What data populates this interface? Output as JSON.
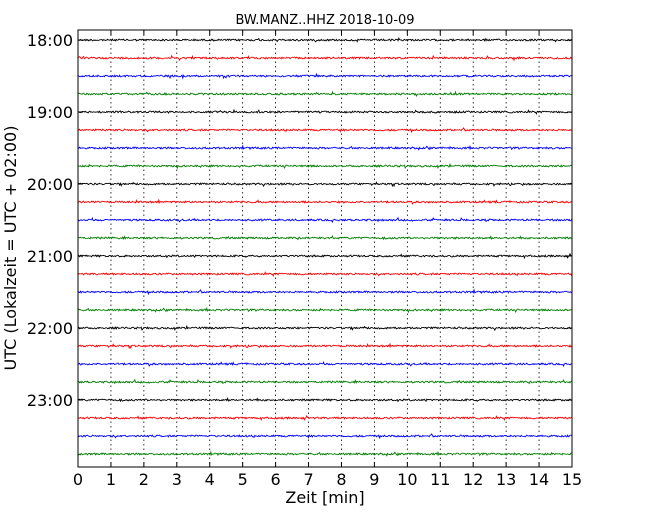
{
  "chart_data": {
    "type": "line",
    "title": "BW.MANZ..HHZ 2018-10-09",
    "xlabel": "Zeit  [min]",
    "ylabel": "UTC (Lokalzeit = UTC + 02:00)",
    "xlim": [
      0,
      15
    ],
    "x_ticks": [
      "0",
      "1",
      "2",
      "3",
      "4",
      "5",
      "6",
      "7",
      "8",
      "9",
      "10",
      "11",
      "12",
      "13",
      "14",
      "15"
    ],
    "y_ticks": [
      "18:00",
      "19:00",
      "20:00",
      "21:00",
      "22:00",
      "23:00"
    ],
    "grid": "vertical dotted",
    "trace_interval_minutes": 15,
    "trace_start": "18:00",
    "trace_end": "23:45",
    "trace_colors": [
      "#000000",
      "#ff0000",
      "#0000ff",
      "#008000"
    ]
  }
}
